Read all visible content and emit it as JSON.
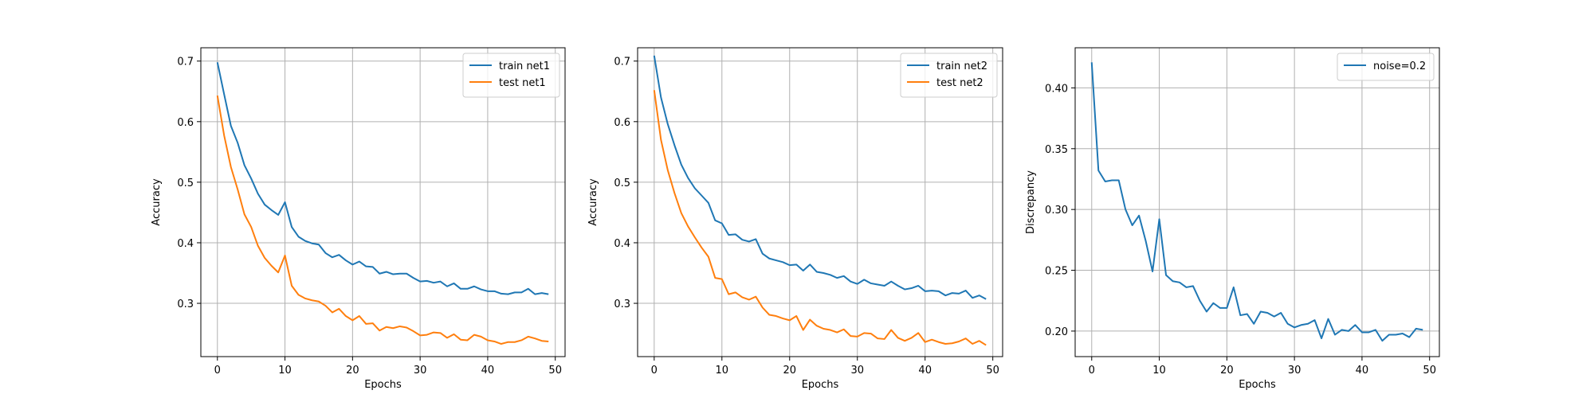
{
  "colors": {
    "series1": "#1f77b4",
    "series2": "#ff7f0e",
    "grid": "#b0b0b0",
    "axis": "#000000"
  },
  "chart_data": [
    {
      "type": "line",
      "xlabel": "Epochs",
      "ylabel": "Accuracy",
      "xlim": [
        -2.45,
        51.45
      ],
      "ylim": [
        0.212,
        0.722
      ],
      "xticks": [
        0,
        10,
        20,
        30,
        40,
        50
      ],
      "yticks": [
        0.3,
        0.4,
        0.5,
        0.6,
        0.7
      ],
      "grid": true,
      "legend_position": "top-right",
      "series": [
        {
          "name": "train net1",
          "color": "#1f77b4",
          "x": [
            0,
            1,
            2,
            3,
            4,
            5,
            6,
            7,
            8,
            9,
            10,
            11,
            12,
            13,
            14,
            15,
            16,
            17,
            18,
            19,
            20,
            21,
            22,
            23,
            24,
            25,
            26,
            27,
            28,
            29,
            30,
            31,
            32,
            33,
            34,
            35,
            36,
            37,
            38,
            39,
            40,
            41,
            42,
            43,
            44,
            45,
            46,
            47,
            48,
            49
          ],
          "y": [
            0.698,
            0.645,
            0.593,
            0.565,
            0.528,
            0.506,
            0.481,
            0.463,
            0.454,
            0.446,
            0.467,
            0.426,
            0.41,
            0.403,
            0.399,
            0.397,
            0.383,
            0.376,
            0.38,
            0.371,
            0.364,
            0.369,
            0.361,
            0.36,
            0.349,
            0.352,
            0.348,
            0.349,
            0.349,
            0.342,
            0.336,
            0.337,
            0.334,
            0.336,
            0.328,
            0.333,
            0.324,
            0.324,
            0.328,
            0.323,
            0.32,
            0.32,
            0.316,
            0.315,
            0.318,
            0.318,
            0.324,
            0.315,
            0.317,
            0.315
          ]
        },
        {
          "name": "test net1",
          "color": "#ff7f0e",
          "x": [
            0,
            1,
            2,
            3,
            4,
            5,
            6,
            7,
            8,
            9,
            10,
            11,
            12,
            13,
            14,
            15,
            16,
            17,
            18,
            19,
            20,
            21,
            22,
            23,
            24,
            25,
            26,
            27,
            28,
            29,
            30,
            31,
            32,
            33,
            34,
            35,
            36,
            37,
            38,
            39,
            40,
            41,
            42,
            43,
            44,
            45,
            46,
            47,
            48,
            49
          ],
          "y": [
            0.643,
            0.577,
            0.525,
            0.488,
            0.447,
            0.426,
            0.395,
            0.375,
            0.362,
            0.351,
            0.379,
            0.329,
            0.314,
            0.308,
            0.305,
            0.303,
            0.296,
            0.285,
            0.291,
            0.279,
            0.272,
            0.279,
            0.266,
            0.267,
            0.255,
            0.261,
            0.259,
            0.262,
            0.26,
            0.254,
            0.247,
            0.248,
            0.252,
            0.251,
            0.243,
            0.249,
            0.24,
            0.239,
            0.248,
            0.245,
            0.239,
            0.237,
            0.233,
            0.236,
            0.236,
            0.239,
            0.245,
            0.242,
            0.238,
            0.237
          ]
        }
      ]
    },
    {
      "type": "line",
      "xlabel": "Epochs",
      "ylabel": "Accuracy",
      "xlim": [
        -2.45,
        51.45
      ],
      "ylim": [
        0.212,
        0.722
      ],
      "xticks": [
        0,
        10,
        20,
        30,
        40,
        50
      ],
      "yticks": [
        0.3,
        0.4,
        0.5,
        0.6,
        0.7
      ],
      "grid": true,
      "legend_position": "top-right",
      "series": [
        {
          "name": "train net2",
          "color": "#1f77b4",
          "x": [
            0,
            1,
            2,
            3,
            4,
            5,
            6,
            7,
            8,
            9,
            10,
            11,
            12,
            13,
            14,
            15,
            16,
            17,
            18,
            19,
            20,
            21,
            22,
            23,
            24,
            25,
            26,
            27,
            28,
            29,
            30,
            31,
            32,
            33,
            34,
            35,
            36,
            37,
            38,
            39,
            40,
            41,
            42,
            43,
            44,
            45,
            46,
            47,
            48,
            49
          ],
          "y": [
            0.709,
            0.64,
            0.596,
            0.561,
            0.529,
            0.507,
            0.49,
            0.478,
            0.466,
            0.437,
            0.432,
            0.413,
            0.414,
            0.405,
            0.402,
            0.406,
            0.382,
            0.374,
            0.371,
            0.368,
            0.363,
            0.364,
            0.354,
            0.364,
            0.352,
            0.35,
            0.347,
            0.342,
            0.345,
            0.336,
            0.332,
            0.339,
            0.333,
            0.331,
            0.329,
            0.336,
            0.329,
            0.323,
            0.325,
            0.329,
            0.32,
            0.321,
            0.32,
            0.313,
            0.317,
            0.316,
            0.321,
            0.309,
            0.313,
            0.307
          ]
        },
        {
          "name": "test net2",
          "color": "#ff7f0e",
          "x": [
            0,
            1,
            2,
            3,
            4,
            5,
            6,
            7,
            8,
            9,
            10,
            11,
            12,
            13,
            14,
            15,
            16,
            17,
            18,
            19,
            20,
            21,
            22,
            23,
            24,
            25,
            26,
            27,
            28,
            29,
            30,
            31,
            32,
            33,
            34,
            35,
            36,
            37,
            38,
            39,
            40,
            41,
            42,
            43,
            44,
            45,
            46,
            47,
            48,
            49
          ],
          "y": [
            0.652,
            0.57,
            0.52,
            0.482,
            0.449,
            0.427,
            0.409,
            0.392,
            0.377,
            0.342,
            0.34,
            0.315,
            0.318,
            0.31,
            0.306,
            0.311,
            0.293,
            0.281,
            0.279,
            0.275,
            0.272,
            0.279,
            0.256,
            0.273,
            0.263,
            0.258,
            0.256,
            0.252,
            0.257,
            0.246,
            0.245,
            0.251,
            0.25,
            0.242,
            0.241,
            0.256,
            0.243,
            0.238,
            0.243,
            0.251,
            0.236,
            0.24,
            0.236,
            0.233,
            0.234,
            0.237,
            0.242,
            0.233,
            0.238,
            0.231
          ]
        }
      ]
    },
    {
      "type": "line",
      "xlabel": "Epochs",
      "ylabel": "Discrepancy",
      "xlim": [
        -2.45,
        51.45
      ],
      "ylim": [
        0.179,
        0.433
      ],
      "xticks": [
        0,
        10,
        20,
        30,
        40,
        50
      ],
      "yticks": [
        0.2,
        0.25,
        0.3,
        0.35,
        0.4
      ],
      "ytick_labels": [
        "0.20",
        "0.25",
        "0.30",
        "0.35",
        "0.40"
      ],
      "grid": true,
      "legend_position": "top-right",
      "series": [
        {
          "name": "noise=0.2",
          "color": "#1f77b4",
          "x": [
            0,
            1,
            2,
            3,
            4,
            5,
            6,
            7,
            8,
            9,
            10,
            11,
            12,
            13,
            14,
            15,
            16,
            17,
            18,
            19,
            20,
            21,
            22,
            23,
            24,
            25,
            26,
            27,
            28,
            29,
            30,
            31,
            32,
            33,
            34,
            35,
            36,
            37,
            38,
            39,
            40,
            41,
            42,
            43,
            44,
            45,
            46,
            47,
            48,
            49
          ],
          "y": [
            0.421,
            0.332,
            0.323,
            0.324,
            0.324,
            0.3,
            0.287,
            0.295,
            0.274,
            0.249,
            0.292,
            0.246,
            0.241,
            0.24,
            0.236,
            0.237,
            0.225,
            0.216,
            0.223,
            0.219,
            0.219,
            0.236,
            0.213,
            0.214,
            0.206,
            0.216,
            0.215,
            0.212,
            0.215,
            0.206,
            0.203,
            0.205,
            0.206,
            0.209,
            0.194,
            0.21,
            0.197,
            0.201,
            0.2,
            0.205,
            0.199,
            0.199,
            0.201,
            0.192,
            0.197,
            0.197,
            0.198,
            0.195,
            0.202,
            0.201
          ]
        }
      ]
    }
  ]
}
